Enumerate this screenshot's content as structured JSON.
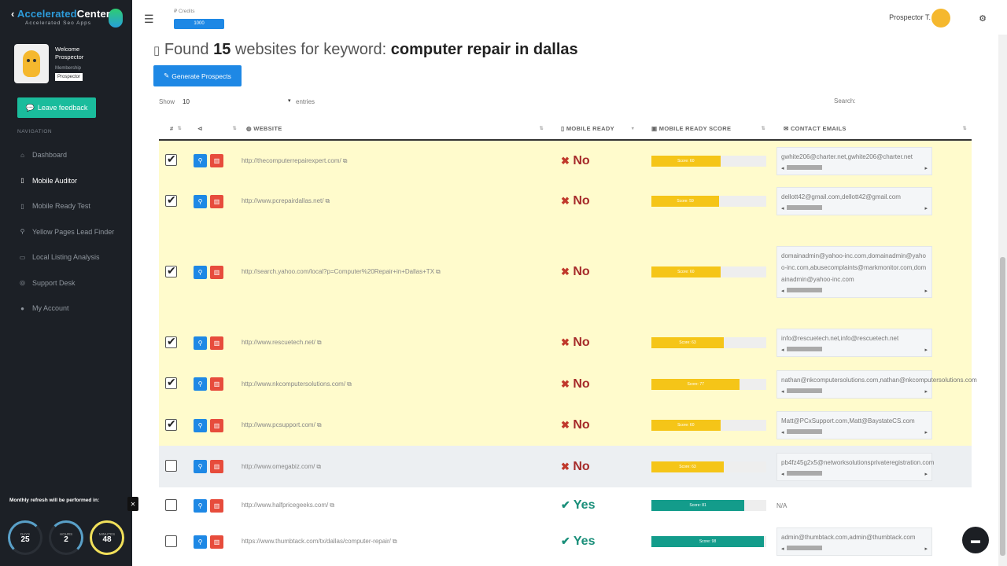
{
  "sidebar": {
    "brand_prefix": "Accelerated",
    "brand_suffix": "Center",
    "tagline": "Accelerated Seo Apps",
    "welcome": "Welcome",
    "user_name": "Prospector",
    "membership_label": "Membership",
    "membership_badge": "Prospector",
    "feedback_label": "Leave feedback",
    "nav_title": "NAVIGATION",
    "nav_items": [
      {
        "label": "Dashboard",
        "icon": "home-icon"
      },
      {
        "label": "Mobile Auditor",
        "icon": "mobile-icon"
      },
      {
        "label": "Mobile Ready Test",
        "icon": "mobile-icon"
      },
      {
        "label": "Yellow Pages Lead Finder",
        "icon": "search-icon"
      },
      {
        "label": "Local Listing Analysis",
        "icon": "document-icon"
      },
      {
        "label": "Support Desk",
        "icon": "support-icon"
      },
      {
        "label": "My Account",
        "icon": "user-icon"
      }
    ],
    "refresh_text": "Monthly refresh will be performed in:",
    "gauges": [
      {
        "value": "25",
        "label": "DAYS"
      },
      {
        "value": "2",
        "label": "HOURS"
      },
      {
        "value": "48",
        "label": "MINUTES"
      }
    ]
  },
  "topbar": {
    "credits_label": "Credits",
    "credits_value": "1000",
    "user_label": "Prospector T."
  },
  "main": {
    "heading_prefix": "Found",
    "count": "15",
    "heading_mid": "websites for keyword:",
    "keyword": "computer repair in dallas",
    "generate_label": "Generate Prospects",
    "show_label": "Show",
    "show_value": "10",
    "entries_label": "entries",
    "search_label": "Search:"
  },
  "table": {
    "headers": {
      "index": "#",
      "share": "",
      "website": "WEBSITE",
      "mobile_ready": "MOBILE READY",
      "score": "MOBILE READY SCORE",
      "emails": "CONTACT EMAILS"
    },
    "rows": [
      {
        "checked": true,
        "state": "sel",
        "url": "http://thecomputerrepairexpert.com/",
        "ready": "No",
        "score": 60,
        "score_label": "Score: 60",
        "emails": "gwhite206@charter.net,gwhite206@charter.net"
      },
      {
        "checked": true,
        "state": "sel",
        "url": "http://www.pcrepairdallas.net/",
        "ready": "No",
        "score": 59,
        "score_label": "Score: 59",
        "emails": "dellott42@gmail.com,dellott42@gmail.com"
      },
      {
        "checked": true,
        "state": "sel",
        "url": "http://search.yahoo.com/local?p=Computer%20Repair+in+Dallas+TX",
        "ready": "No",
        "score": 60,
        "score_label": "Score: 60",
        "emails": "domainadmin@yahoo-inc.com,domainadmin@yahoo-inc.com,abusecomplaints@markmonitor.com,domainadmin@yahoo-inc.com",
        "wrap": true
      },
      {
        "checked": true,
        "state": "sel",
        "url": "http://www.rescuetech.net/",
        "ready": "No",
        "score": 63,
        "score_label": "Score: 63",
        "emails": "info@rescuetech.net,info@rescuetech.net"
      },
      {
        "checked": true,
        "state": "sel",
        "url": "http://www.nkcomputersolutions.com/",
        "ready": "No",
        "score": 77,
        "score_label": "Score: 77",
        "emails": "nathan@nkcomputersolutions.com,nathan@nkcomputersolutions.com"
      },
      {
        "checked": true,
        "state": "sel",
        "url": "http://www.pcsupport.com/",
        "ready": "No",
        "score": 60,
        "score_label": "Score: 60",
        "emails": "Matt@PCxSupport.com,Matt@BaystateCS.com"
      },
      {
        "checked": false,
        "state": "hover",
        "url": "http://www.omegabiz.com/",
        "ready": "No",
        "score": 63,
        "score_label": "Score: 63",
        "emails": "pb4fz45g2x5@networksolutionsprivateregistration.com"
      },
      {
        "checked": false,
        "state": "plain",
        "url": "http://www.halfpricegeeks.com/",
        "ready": "Yes",
        "score": 81,
        "score_label": "Score: 81",
        "emails": "N/A",
        "na": true
      },
      {
        "checked": false,
        "state": "plain",
        "url": "https://www.thumbtack.com/tx/dallas/computer-repair/",
        "ready": "Yes",
        "score": 98,
        "score_label": "Score: 98",
        "emails": "admin@thumbtack.com,admin@thumbtack.com"
      }
    ]
  },
  "colors": {
    "accent": "#1e88e5",
    "danger": "#e74c3c",
    "selected_row": "#fffbcc",
    "score_warn": "#f5c518",
    "score_ok": "#139c8b",
    "sidebar_bg": "#1c2026"
  }
}
